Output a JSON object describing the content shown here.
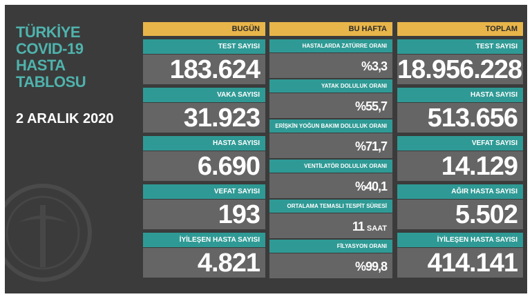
{
  "title": {
    "lines": [
      "TÜRKİYE",
      "COVID-19",
      "HASTA",
      "TABLOSU"
    ]
  },
  "date": "2 ARALIK 2020",
  "columns": [
    {
      "header": "BUGÜN",
      "rows": [
        {
          "label": "TEST SAYISI",
          "value": "183.624"
        },
        {
          "label": "VAKA SAYISI",
          "value": "31.923"
        },
        {
          "label": "HASTA SAYISI",
          "value": "6.690"
        },
        {
          "label": "VEFAT SAYISI",
          "value": "193"
        },
        {
          "label": "İYİLEŞEN HASTA SAYISI",
          "value": "4.821"
        }
      ]
    },
    {
      "header": "BU HAFTA",
      "rows": [
        {
          "label": "HASTALARDA ZATÜRRE ORANI",
          "value": "%3,3"
        },
        {
          "label": "YATAK DOLULUK ORANI",
          "value": "%55,7"
        },
        {
          "label": "ERİŞKİN YOĞUN BAKIM DOLULUK ORANI",
          "value": "%71,7"
        },
        {
          "label": "VENTİLATÖR DOLULUK ORANI",
          "value": "%40,1"
        },
        {
          "label": "ORTALAMA TEMASLI TESPİT SÜRESİ",
          "value": "11",
          "unit": "SAAT"
        },
        {
          "label": "FİLYASYON ORANI",
          "value": "%99,8"
        }
      ]
    },
    {
      "header": "TOPLAM",
      "rows": [
        {
          "label": "TEST SAYISI",
          "value": "18.956.228"
        },
        {
          "label": "HASTA SAYISI",
          "value": "513.656"
        },
        {
          "label": "VEFAT SAYISI",
          "value": "14.129"
        },
        {
          "label": "AĞIR HASTA SAYISI",
          "value": "5.502"
        },
        {
          "label": "İYİLEŞEN HASTA SAYISI",
          "value": "414.141"
        }
      ]
    }
  ]
}
